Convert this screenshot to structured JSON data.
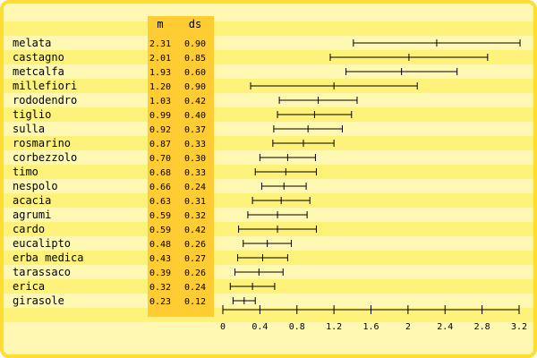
{
  "chart_data": {
    "type": "errorbar",
    "columns": {
      "m": "m",
      "ds": "ds"
    },
    "rows": [
      {
        "label": "melata",
        "m": 2.31,
        "ds": 0.9
      },
      {
        "label": "castagno",
        "m": 2.01,
        "ds": 0.85
      },
      {
        "label": "metcalfa",
        "m": 1.93,
        "ds": 0.6
      },
      {
        "label": "millefiori",
        "m": 1.2,
        "ds": 0.9
      },
      {
        "label": "rododendro",
        "m": 1.03,
        "ds": 0.42
      },
      {
        "label": "tiglio",
        "m": 0.99,
        "ds": 0.4
      },
      {
        "label": "sulla",
        "m": 0.92,
        "ds": 0.37
      },
      {
        "label": "rosmarino",
        "m": 0.87,
        "ds": 0.33
      },
      {
        "label": "corbezzolo",
        "m": 0.7,
        "ds": 0.3
      },
      {
        "label": "timo",
        "m": 0.68,
        "ds": 0.33
      },
      {
        "label": "nespolo",
        "m": 0.66,
        "ds": 0.24
      },
      {
        "label": "acacia",
        "m": 0.63,
        "ds": 0.31
      },
      {
        "label": "agrumi",
        "m": 0.59,
        "ds": 0.32
      },
      {
        "label": "cardo",
        "m": 0.59,
        "ds": 0.42
      },
      {
        "label": "eucalipto",
        "m": 0.48,
        "ds": 0.26
      },
      {
        "label": "erba medica",
        "m": 0.43,
        "ds": 0.27
      },
      {
        "label": "tarassaco",
        "m": 0.39,
        "ds": 0.26
      },
      {
        "label": "erica",
        "m": 0.32,
        "ds": 0.24
      },
      {
        "label": "girasole",
        "m": 0.23,
        "ds": 0.12
      }
    ],
    "xlim": [
      0,
      3.2
    ],
    "xticks": [
      0,
      0.4,
      0.8,
      1.2,
      1.6,
      2,
      2.4,
      2.8,
      3.2
    ],
    "grid": false,
    "colors": {
      "background": "#fff8b3",
      "border": "#ffdd33",
      "stripe": "#fff27a",
      "value_column": "#ffcc33",
      "ink": "#000000"
    }
  }
}
